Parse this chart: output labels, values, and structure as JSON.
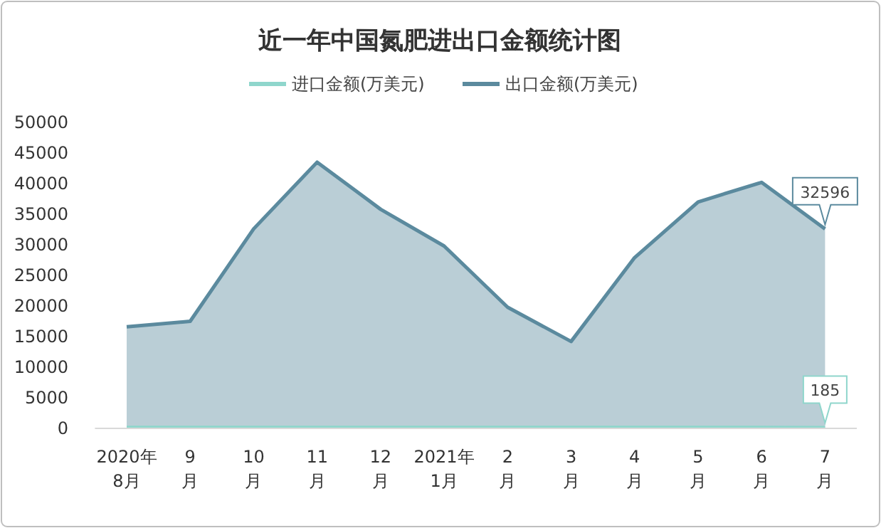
{
  "chart_data": {
    "type": "area",
    "title": "近一年中国氮肥进出口金额统计图",
    "categories": [
      "2020年\n8月",
      "9\n月",
      "10\n月",
      "11\n月",
      "12\n月",
      "2021年\n1月",
      "2\n月",
      "3\n月",
      "4\n月",
      "5\n月",
      "6\n月",
      "7\n月"
    ],
    "series": [
      {
        "name": "进口金额(万美元)",
        "color": "#8fd6cc",
        "values": [
          200,
          200,
          200,
          200,
          200,
          200,
          200,
          200,
          200,
          200,
          200,
          185
        ],
        "value_labels": [
          null,
          null,
          null,
          null,
          null,
          null,
          null,
          null,
          null,
          null,
          null,
          "185"
        ]
      },
      {
        "name": "出口金额(万美元)",
        "color": "#5b8a9e",
        "values": [
          16600,
          17500,
          32600,
          43500,
          35800,
          29800,
          19800,
          14200,
          27900,
          37000,
          40200,
          32596
        ],
        "value_labels": [
          null,
          null,
          null,
          null,
          null,
          null,
          null,
          null,
          null,
          null,
          null,
          "32596"
        ]
      }
    ],
    "ylim": [
      0,
      50000
    ],
    "yticks": [
      0,
      5000,
      10000,
      15000,
      20000,
      25000,
      30000,
      35000,
      40000,
      45000,
      50000
    ],
    "legend": "top",
    "grid": false
  }
}
